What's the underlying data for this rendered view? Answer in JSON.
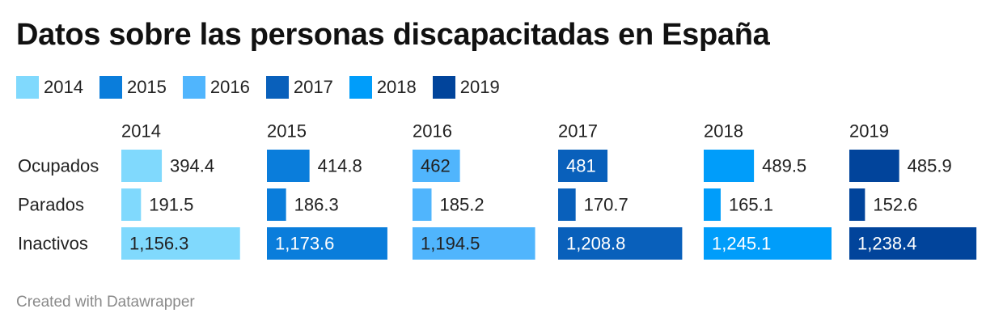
{
  "title": "Datos sobre las personas discapacitadas en España",
  "footer": "Created with Datawrapper",
  "legend": [
    {
      "label": "2014",
      "color": "#80d9fd"
    },
    {
      "label": "2015",
      "color": "#0a7ddb"
    },
    {
      "label": "2016",
      "color": "#50b5fd"
    },
    {
      "label": "2017",
      "color": "#0960bb"
    },
    {
      "label": "2018",
      "color": "#009dfa"
    },
    {
      "label": "2019",
      "color": "#01449b"
    }
  ],
  "chart_data": {
    "type": "bar",
    "orientation": "horizontal",
    "layout": "small-multiples",
    "categories": [
      "Ocupados",
      "Parados",
      "Inactivos"
    ],
    "series": [
      {
        "name": "2014",
        "color": "#80d9fd",
        "values": [
          394.4,
          191.5,
          1156.3
        ],
        "labels": [
          "394.4",
          "191.5",
          "1,156.3"
        ]
      },
      {
        "name": "2015",
        "color": "#0a7ddb",
        "values": [
          414.8,
          186.3,
          1173.6
        ],
        "labels": [
          "414.8",
          "186.3",
          "1,173.6"
        ]
      },
      {
        "name": "2016",
        "color": "#50b5fd",
        "values": [
          462,
          185.2,
          1194.5
        ],
        "labels": [
          "462",
          "185.2",
          "1,194.5"
        ]
      },
      {
        "name": "2017",
        "color": "#0960bb",
        "values": [
          481,
          170.7,
          1208.8
        ],
        "labels": [
          "481",
          "170.7",
          "1,208.8"
        ]
      },
      {
        "name": "2018",
        "color": "#009dfa",
        "values": [
          489.5,
          165.1,
          1245.1
        ],
        "labels": [
          "489.5",
          "165.1",
          "1,245.1"
        ]
      },
      {
        "name": "2019",
        "color": "#01449b",
        "values": [
          485.9,
          152.6,
          1238.4
        ],
        "labels": [
          "485.9",
          "152.6",
          "1,238.4"
        ]
      }
    ],
    "xlim": [
      0,
      1245.1
    ],
    "grid": false
  }
}
